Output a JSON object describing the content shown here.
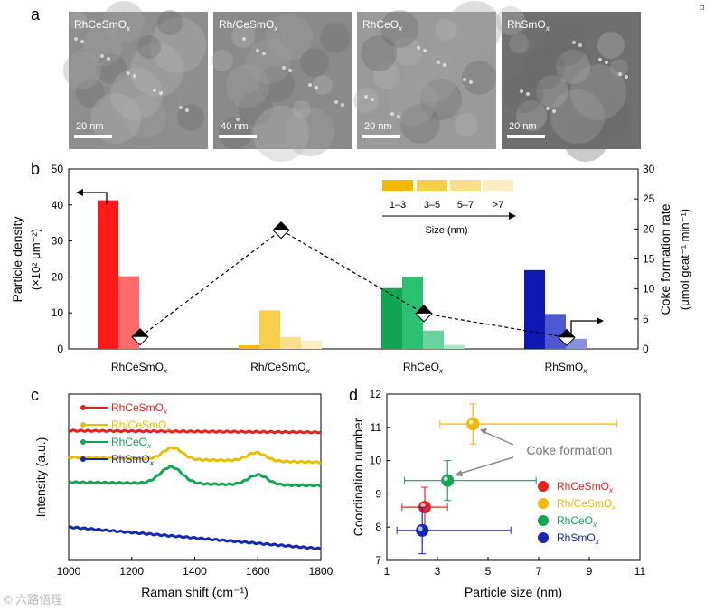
{
  "figure": {
    "panel_a": {
      "letter": "a",
      "images": [
        {
          "label": "RhCeSmOx",
          "scale": "20 nm",
          "bg": "#8e8e8e"
        },
        {
          "label": "Rh/CeSmOx",
          "scale": "40 nm",
          "bg": "#8a8a8a"
        },
        {
          "label": "RhCeOx",
          "scale": "20 nm",
          "bg": "#9a9a9a"
        },
        {
          "label": "RhSmOx",
          "scale": "20 nm",
          "bg": "#6f6f6f"
        }
      ]
    },
    "panel_b_letter": "b",
    "panel_c_letter": "c",
    "panel_d_letter": "d",
    "watermark": "© 六路悟理",
    "top_right_mark": "⌑"
  },
  "chart_data": [
    {
      "panel": "b",
      "type": "bar",
      "categories": [
        "RhCeSmOx",
        "Rh/CeSmOx",
        "RhCeOx",
        "RhSmOx"
      ],
      "ylabel_left": "Particle density (×10² μm⁻²)",
      "ylabel_right": "Coke formation rate (μmol g_cat⁻¹ min⁻¹)",
      "ylim_left": [
        0,
        50
      ],
      "ylim_right": [
        0,
        30
      ],
      "left_ticks": [
        0,
        10,
        20,
        30,
        40,
        50
      ],
      "right_ticks": [
        0,
        5,
        10,
        15,
        20,
        25,
        30
      ],
      "size_legend_title": "Size (nm)",
      "size_bins": [
        "1–3",
        "3–5",
        "5–7",
        ">7"
      ],
      "size_colors": [
        "#f5b800",
        "#f7cf4a",
        "#f9df8c",
        "#fbeec3"
      ],
      "series_colors": [
        [
          "#ff1a1a",
          "#ff6b6b",
          "#ff9c9c",
          "#ffc7c7"
        ],
        [
          "#f5b800",
          "#f7cf4a",
          "#f9df8c",
          "#fbeec3"
        ],
        [
          "#12a553",
          "#2bc074",
          "#66d49c",
          "#a8e6c4"
        ],
        [
          "#0c19b4",
          "#4f58d0",
          "#8a90e0",
          "#c2c5f0"
        ]
      ],
      "density": [
        [
          41.3,
          20.2,
          0.0,
          0.0
        ],
        [
          1.0,
          10.7,
          3.3,
          2.3
        ],
        [
          16.9,
          20.0,
          5.1,
          1.1
        ],
        [
          21.9,
          9.7,
          2.8,
          0.0
        ]
      ],
      "coke_rate": [
        2.0,
        19.8,
        5.9,
        1.9
      ]
    },
    {
      "panel": "c",
      "type": "line",
      "xlabel": "Raman shift (cm⁻¹)",
      "ylabel": "Intensity (a.u.)",
      "xlim": [
        1000,
        1800
      ],
      "x_ticks": [
        1000,
        1200,
        1400,
        1600,
        1800
      ],
      "series": [
        {
          "name": "RhCeSmOx",
          "color": "#e82020",
          "offset": 0.78,
          "slope": -0.01,
          "peaks": []
        },
        {
          "name": "Rh/CeSmOx",
          "color": "#e8c000",
          "offset": 0.62,
          "slope": -0.03,
          "peaks": [
            {
              "x": 1330,
              "h": 0.07,
              "w": 30
            },
            {
              "x": 1595,
              "h": 0.05,
              "w": 30
            }
          ]
        },
        {
          "name": "RhCeOx",
          "color": "#12a553",
          "offset": 0.47,
          "slope": -0.02,
          "peaks": [
            {
              "x": 1325,
              "h": 0.1,
              "w": 35
            },
            {
              "x": 1600,
              "h": 0.06,
              "w": 30
            }
          ]
        },
        {
          "name": "RhSmOx",
          "color": "#1428b4",
          "offset": 0.2,
          "slope": -0.13,
          "peaks": []
        }
      ]
    },
    {
      "panel": "d",
      "type": "scatter",
      "xlabel": "Particle size (nm)",
      "ylabel": "Coordination number",
      "xlim": [
        1,
        11
      ],
      "ylim": [
        7,
        12
      ],
      "x_ticks": [
        1,
        3,
        5,
        7,
        9,
        11
      ],
      "y_ticks": [
        7,
        8,
        9,
        10,
        11,
        12
      ],
      "annotation": "Coke formation",
      "points": [
        {
          "name": "RhCeSmOx",
          "color": "#e82020",
          "x": 2.5,
          "y": 8.6,
          "xerr": [
            1.6,
            3.4
          ],
          "yerr": [
            8.0,
            9.2
          ]
        },
        {
          "name": "Rh/CeSmOx",
          "color": "#f0b800",
          "x": 4.4,
          "y": 11.1,
          "xerr": [
            3.1,
            10.1
          ],
          "yerr": [
            10.5,
            11.7
          ]
        },
        {
          "name": "RhCeOx",
          "color": "#12a553",
          "x": 3.4,
          "y": 9.4,
          "xerr": [
            1.7,
            6.9
          ],
          "yerr": [
            8.8,
            10.0
          ]
        },
        {
          "name": "RhSmOx",
          "color": "#1428b4",
          "x": 2.4,
          "y": 7.9,
          "xerr": [
            1.4,
            5.9
          ],
          "yerr": [
            7.2,
            8.6
          ]
        }
      ]
    }
  ]
}
